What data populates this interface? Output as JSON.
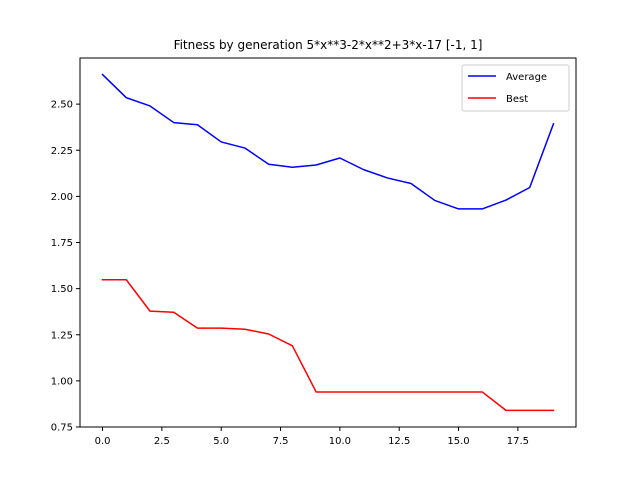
{
  "chart_data": {
    "type": "line",
    "title": "Fitness by generation 5*x**3-2*x**2+3*x-17 [-1, 1]",
    "xlabel": "",
    "ylabel": "",
    "xlim": [
      -0.95,
      19.95
    ],
    "ylim": [
      0.75,
      2.75
    ],
    "xticks": [
      0.0,
      2.5,
      5.0,
      7.5,
      10.0,
      12.5,
      15.0,
      17.5
    ],
    "xtick_labels": [
      "0.0",
      "2.5",
      "5.0",
      "7.5",
      "10.0",
      "12.5",
      "15.0",
      "17.5"
    ],
    "yticks": [
      0.75,
      1.0,
      1.25,
      1.5,
      1.75,
      2.0,
      2.25,
      2.5
    ],
    "ytick_labels": [
      "0.75",
      "1.00",
      "1.25",
      "1.50",
      "1.75",
      "2.00",
      "2.25",
      "2.50"
    ],
    "grid": false,
    "legend_position": "top-right",
    "x": [
      0,
      1,
      2,
      3,
      4,
      5,
      6,
      7,
      8,
      9,
      10,
      11,
      12,
      13,
      14,
      15,
      16,
      17,
      18,
      19
    ],
    "series": [
      {
        "name": "Average",
        "color": "#0000ff",
        "values": [
          2.66,
          2.535,
          2.49,
          2.4,
          2.388,
          2.295,
          2.262,
          2.174,
          2.158,
          2.17,
          2.208,
          2.145,
          2.1,
          2.07,
          1.978,
          1.932,
          1.932,
          1.98,
          2.048,
          2.393
        ]
      },
      {
        "name": "Best",
        "color": "#ff0000",
        "values": [
          1.548,
          1.548,
          1.378,
          1.372,
          1.286,
          1.286,
          1.28,
          1.254,
          1.19,
          0.94,
          0.94,
          0.94,
          0.94,
          0.94,
          0.94,
          0.94,
          0.94,
          0.84,
          0.84,
          0.84
        ]
      }
    ]
  }
}
